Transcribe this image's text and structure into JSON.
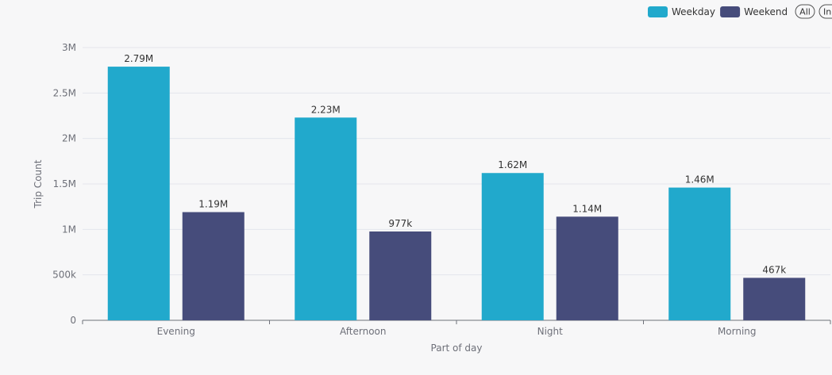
{
  "chart_data": {
    "type": "bar",
    "categories": [
      "Evening",
      "Afternoon",
      "Night",
      "Morning"
    ],
    "series": [
      {
        "name": "Weekday",
        "color": "#21a9cc",
        "values": [
          2790000,
          2230000,
          1620000,
          1460000
        ],
        "labels": [
          "2.79M",
          "2.23M",
          "1.62M",
          "1.46M"
        ]
      },
      {
        "name": "Weekend",
        "color": "#464c7b",
        "values": [
          1190000,
          977000,
          1140000,
          467000
        ],
        "labels": [
          "1.19M",
          "977k",
          "1.14M",
          "467k"
        ]
      }
    ],
    "xlabel": "Part of day",
    "ylabel": "Trip Count",
    "ylim": [
      0,
      3000000
    ],
    "yticks": [
      {
        "value": 0,
        "label": "0"
      },
      {
        "value": 500000,
        "label": "500k"
      },
      {
        "value": 1000000,
        "label": "1M"
      },
      {
        "value": 1500000,
        "label": "1.5M"
      },
      {
        "value": 2000000,
        "label": "2M"
      },
      {
        "value": 2500000,
        "label": "2.5M"
      },
      {
        "value": 3000000,
        "label": "3M"
      }
    ],
    "grid": true,
    "legend_position": "top-right"
  },
  "legend_controls": {
    "all_label": "All",
    "inverse_label": "In"
  }
}
